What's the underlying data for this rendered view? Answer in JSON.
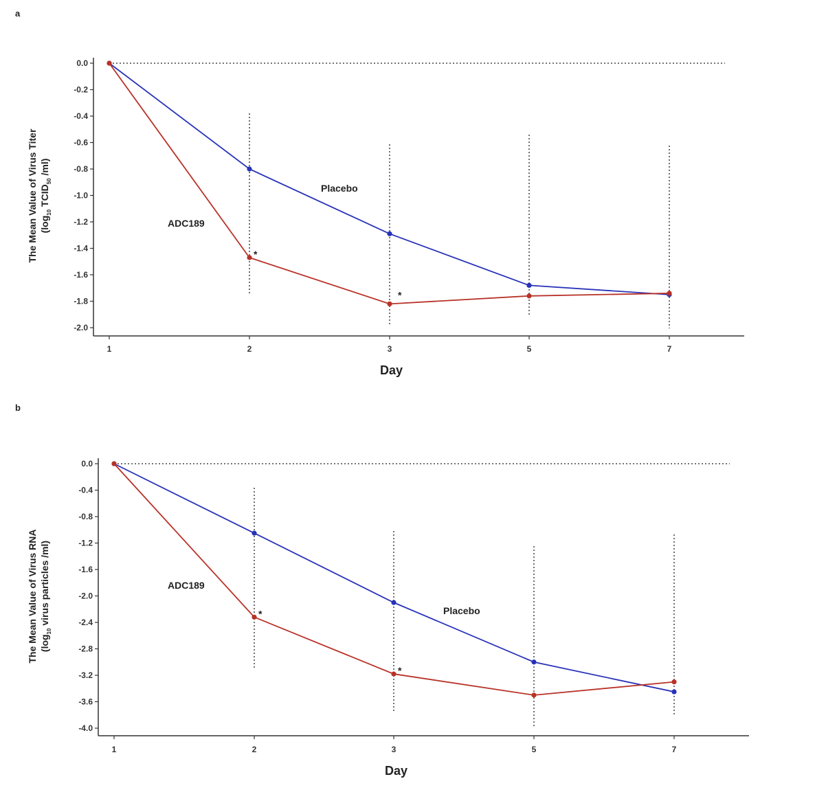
{
  "colors": {
    "placebo": "#2832b8",
    "adc189": "#b83228",
    "axis": "#333333"
  },
  "chart_data": [
    {
      "panel": "a",
      "type": "line",
      "xlabel": "Day",
      "ylabel_line1": "The Mean Value of Virus Titer",
      "ylabel_line2_pre": "(log",
      "ylabel_line2_sub1": "10",
      "ylabel_line2_mid": " TCID",
      "ylabel_line2_sub2": "50",
      "ylabel_line2_post": " /ml)",
      "categories": [
        "1",
        "2",
        "3",
        "5",
        "7"
      ],
      "y_ticks": [
        "0.0",
        "-0.2",
        "-0.4",
        "-0.6",
        "-0.8",
        "-1.0",
        "-1.2",
        "-1.4",
        "-1.6",
        "-1.8",
        "-2.0"
      ],
      "ylim": [
        -2.0,
        0.0
      ],
      "series": [
        {
          "name": "Placebo",
          "values": [
            0.0,
            -0.8,
            -1.29,
            -1.68,
            -1.75
          ]
        },
        {
          "name": "ADC189",
          "values": [
            0.0,
            -1.47,
            -1.82,
            -1.76,
            -1.74
          ]
        }
      ],
      "significance_marks": [
        "*",
        "*"
      ]
    },
    {
      "panel": "b",
      "type": "line",
      "xlabel": "Day",
      "ylabel_line1": "The Mean Value of Virus RNA",
      "ylabel_line2_pre": "(log",
      "ylabel_line2_sub1": "10",
      "ylabel_line2_mid": " virus particles /ml)",
      "categories": [
        "1",
        "2",
        "3",
        "5",
        "7"
      ],
      "y_ticks": [
        "0.0",
        "-0.4",
        "-0.8",
        "-1.2",
        "-1.6",
        "-2.0",
        "-2.4",
        "-2.8",
        "-3.2",
        "-3.6",
        "-4.0"
      ],
      "ylim": [
        -4.0,
        0.0
      ],
      "series": [
        {
          "name": "Placebo",
          "values": [
            0.0,
            -1.05,
            -2.1,
            -3.0,
            -3.45
          ]
        },
        {
          "name": "ADC189",
          "values": [
            0.0,
            -2.32,
            -3.18,
            -3.5,
            -3.3
          ]
        }
      ],
      "significance_marks": [
        "*",
        "*"
      ]
    }
  ]
}
